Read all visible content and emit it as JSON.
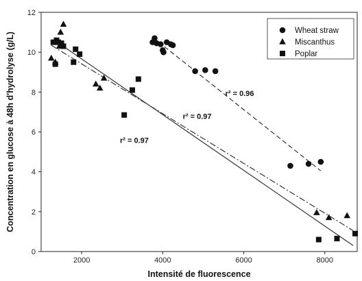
{
  "chart_data": {
    "type": "scatter",
    "xlabel": "Intensité de fluorescence",
    "ylabel": "Concentration en glucose à 48h d'hydrolyse (g/L)",
    "xlim": [
      1000,
      8800
    ],
    "ylim": [
      0,
      12
    ],
    "xticks": [
      2000,
      4000,
      6000,
      8000
    ],
    "yticks": [
      0,
      2,
      4,
      6,
      8,
      10,
      12
    ],
    "grid": false,
    "legend_position": "top-right",
    "series": [
      {
        "name": "Wheat straw",
        "marker": "circle",
        "points": [
          [
            3750,
            10.5
          ],
          [
            3800,
            10.7
          ],
          [
            3850,
            10.45
          ],
          [
            3950,
            10.4
          ],
          [
            4000,
            10.1
          ],
          [
            4020,
            10.0
          ],
          [
            4100,
            10.5
          ],
          [
            4200,
            10.4
          ],
          [
            4250,
            10.35
          ],
          [
            4800,
            9.05
          ],
          [
            5050,
            9.1
          ],
          [
            5300,
            9.05
          ],
          [
            7150,
            4.3
          ],
          [
            7600,
            4.4
          ],
          [
            7900,
            4.5
          ]
        ]
      },
      {
        "name": "Miscanthus",
        "marker": "triangle",
        "points": [
          [
            1250,
            9.7
          ],
          [
            1350,
            9.5
          ],
          [
            1400,
            10.5
          ],
          [
            1450,
            10.3
          ],
          [
            1480,
            11.0
          ],
          [
            1550,
            11.4
          ],
          [
            2350,
            8.4
          ],
          [
            2450,
            8.2
          ],
          [
            2550,
            8.7
          ],
          [
            7800,
            1.95
          ],
          [
            8100,
            1.7
          ],
          [
            8550,
            1.8
          ]
        ]
      },
      {
        "name": "Poplar",
        "marker": "square",
        "points": [
          [
            1300,
            10.5
          ],
          [
            1350,
            9.4
          ],
          [
            1380,
            10.6
          ],
          [
            1420,
            10.5
          ],
          [
            1500,
            10.45
          ],
          [
            1550,
            10.3
          ],
          [
            1800,
            9.5
          ],
          [
            1850,
            10.15
          ],
          [
            1950,
            9.9
          ],
          [
            3050,
            6.85
          ],
          [
            3250,
            8.1
          ],
          [
            3400,
            8.65
          ],
          [
            7850,
            0.6
          ],
          [
            8300,
            0.65
          ],
          [
            8750,
            0.9
          ]
        ]
      }
    ],
    "fit_lines": [
      {
        "series": "Wheat straw",
        "style": "dashed",
        "from": [
          3750,
          10.75
        ],
        "to": [
          7900,
          4.05
        ]
      },
      {
        "series": "Miscanthus",
        "style": "dash-dot",
        "from": [
          1250,
          10.35
        ],
        "to": [
          8700,
          1.05
        ]
      },
      {
        "series": "Poplar",
        "style": "solid",
        "from": [
          1400,
          10.5
        ],
        "to": [
          8700,
          0.3
        ]
      }
    ],
    "annotations": [
      {
        "label": "r² = 0.96",
        "x": 5900,
        "y": 7.8
      },
      {
        "label": "r² = 0.97",
        "x": 4850,
        "y": 6.65
      },
      {
        "label": "r² = 0.97",
        "x": 3300,
        "y": 5.45
      }
    ]
  }
}
